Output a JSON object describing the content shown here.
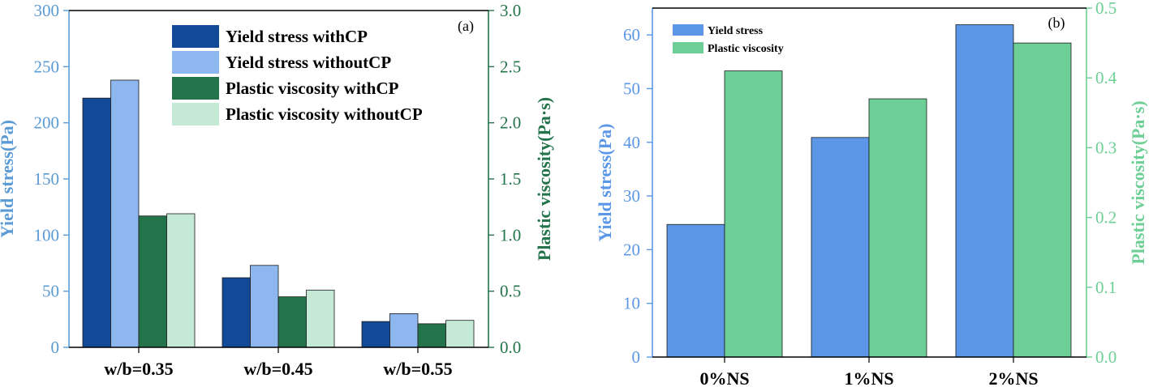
{
  "chart_data": [
    {
      "type": "bar",
      "panel_label": "(a)",
      "categories": [
        "w/b=0.35",
        "w/b=0.45",
        "w/b=0.55"
      ],
      "ylabel_left": "Yield stress(Pa)",
      "ylabel_right": "Plastic viscosity(Pa·s)",
      "ylim_left": [
        0,
        300
      ],
      "ylim_right": [
        0,
        3.0
      ],
      "yticks_left": [
        "0",
        "50",
        "100",
        "150",
        "200",
        "250",
        "300"
      ],
      "yticks_right": [
        "0.0",
        "0.5",
        "1.0",
        "1.5",
        "2.0",
        "2.5",
        "3.0"
      ],
      "series": [
        {
          "name": "Yield stress withCP",
          "axis": "left",
          "color": "#134a97",
          "values": [
            222,
            62,
            23
          ]
        },
        {
          "name": "Yield stress withoutCP",
          "axis": "left",
          "color": "#8db7ee",
          "values": [
            238,
            73,
            30
          ]
        },
        {
          "name": "Plastic viscosity withCP",
          "axis": "right",
          "color": "#23744a",
          "values": [
            1.17,
            0.45,
            0.21
          ]
        },
        {
          "name": "Plastic viscosity withoutCP",
          "axis": "right",
          "color": "#c4ead5",
          "values": [
            1.19,
            0.51,
            0.24
          ]
        }
      ],
      "colors": {
        "left_axis": "#5b9bd5",
        "right_axis": "#23744a"
      },
      "grid": false,
      "legend_position": "top-right"
    },
    {
      "type": "bar",
      "panel_label": "(b)",
      "categories": [
        "0%NS",
        "1%NS",
        "2%NS"
      ],
      "ylabel_left": "Yield stress(Pa)",
      "ylabel_right": "Plastic viscosity(Pa·s)",
      "ylim_left": [
        0,
        65
      ],
      "ylim_right": [
        0,
        0.5
      ],
      "yticks_left": [
        "0",
        "10",
        "20",
        "30",
        "40",
        "50",
        "60"
      ],
      "yticks_right": [
        "0.0",
        "0.1",
        "0.2",
        "0.3",
        "0.4",
        "0.5"
      ],
      "series": [
        {
          "name": "Yield stress",
          "axis": "left",
          "color": "#5b97e6",
          "values": [
            24.7,
            40.9,
            61.9
          ]
        },
        {
          "name": "Plastic viscosity",
          "axis": "right",
          "color": "#6dcf95",
          "values": [
            0.41,
            0.37,
            0.45
          ]
        }
      ],
      "colors": {
        "left_axis": "#5b97e6",
        "right_axis": "#6dcf95"
      },
      "grid": false,
      "legend_position": "top-left"
    }
  ]
}
